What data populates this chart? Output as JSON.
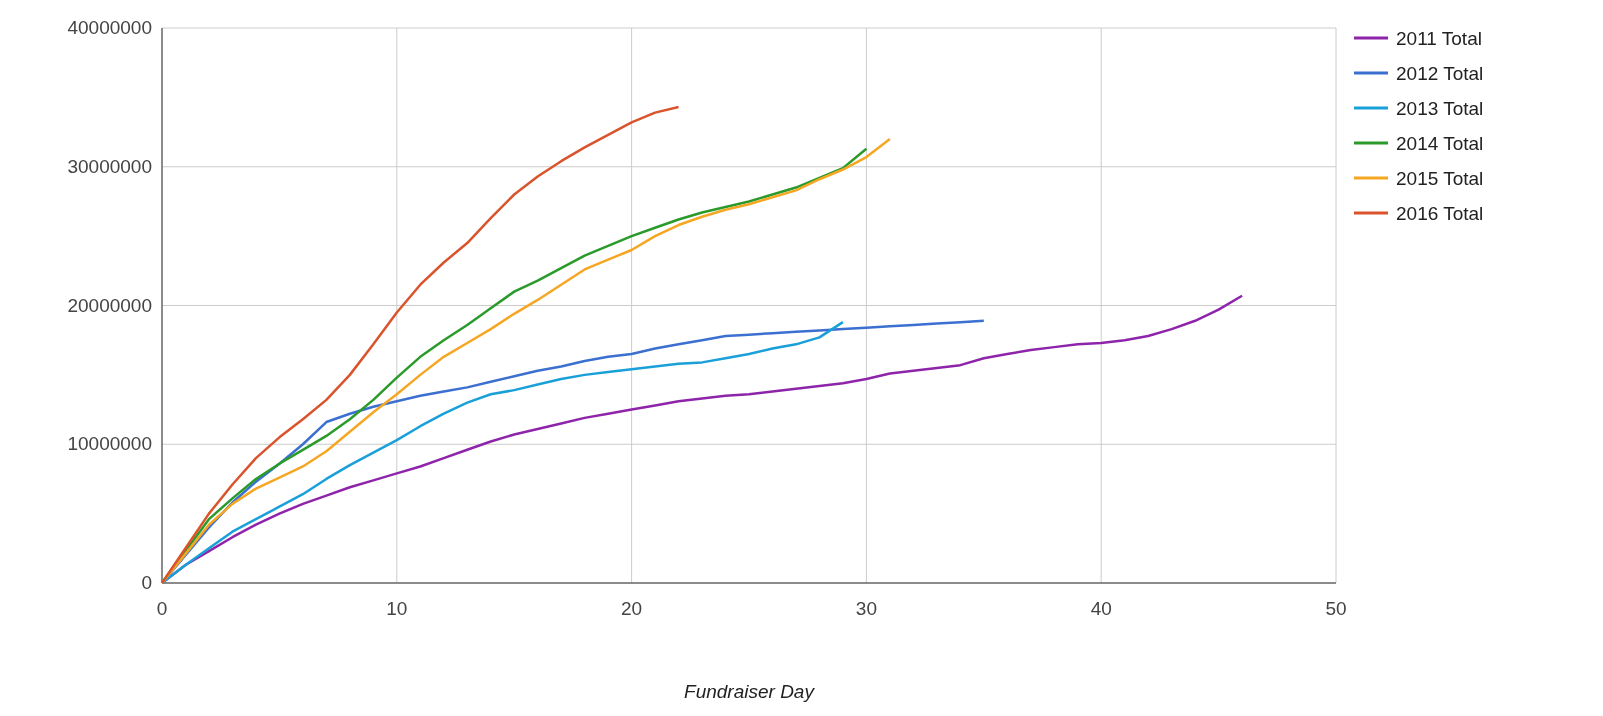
{
  "chart_data": {
    "type": "line",
    "xlabel": "Fundraiser Day",
    "xlim": [
      0,
      50
    ],
    "xticks": [
      0,
      10,
      20,
      30,
      40,
      50
    ],
    "ylim": [
      0,
      40000000
    ],
    "yticks": [
      0,
      10000000,
      20000000,
      30000000,
      40000000
    ],
    "grid": true,
    "legend": "top right",
    "marker": "none",
    "line_style": "solid",
    "series": [
      {
        "name": "2011 Total",
        "color": "#8e24aa",
        "x": [
          0,
          1,
          2,
          3,
          4,
          5,
          6,
          7,
          8,
          9,
          10,
          11,
          12,
          13,
          14,
          15,
          16,
          17,
          18,
          19,
          20,
          21,
          22,
          23,
          24,
          25,
          26,
          27,
          28,
          29,
          30,
          31,
          32,
          33,
          34,
          35,
          36,
          37,
          38,
          39,
          40,
          41,
          42,
          43,
          44,
          45,
          46
        ],
        "values": [
          0,
          1300000,
          2300000,
          3300000,
          4200000,
          5000000,
          5700000,
          6300000,
          6900000,
          7400000,
          7900000,
          8400000,
          9000000,
          9600000,
          10200000,
          10700000,
          11100000,
          11500000,
          11900000,
          12200000,
          12500000,
          12800000,
          13100000,
          13300000,
          13500000,
          13600000,
          13800000,
          14000000,
          14200000,
          14400000,
          14700000,
          15100000,
          15300000,
          15500000,
          15700000,
          16200000,
          16500000,
          16800000,
          17000000,
          17200000,
          17300000,
          17500000,
          17800000,
          18300000,
          18900000,
          19700000,
          20700000
        ]
      },
      {
        "name": "2012 Total",
        "color": "#3b6fd0",
        "x": [
          0,
          1,
          2,
          3,
          4,
          5,
          6,
          7,
          8,
          9,
          10,
          11,
          12,
          13,
          14,
          15,
          16,
          17,
          18,
          19,
          20,
          21,
          22,
          23,
          24,
          25,
          26,
          27,
          28,
          29,
          30,
          31,
          32,
          33,
          34,
          35
        ],
        "values": [
          0,
          2000000,
          4000000,
          5800000,
          7300000,
          8600000,
          10000000,
          11600000,
          12200000,
          12700000,
          13100000,
          13500000,
          13800000,
          14100000,
          14500000,
          14900000,
          15300000,
          15600000,
          16000000,
          16300000,
          16500000,
          16900000,
          17200000,
          17500000,
          17800000,
          17900000,
          18000000,
          18100000,
          18200000,
          18300000,
          18400000,
          18500000,
          18600000,
          18700000,
          18800000,
          18900000
        ]
      },
      {
        "name": "2013 Total",
        "color": "#1aa0d8",
        "x": [
          0,
          1,
          2,
          3,
          4,
          5,
          6,
          7,
          8,
          9,
          10,
          11,
          12,
          13,
          14,
          15,
          16,
          17,
          18,
          19,
          20,
          21,
          22,
          23,
          24,
          25,
          26,
          27,
          28,
          29
        ],
        "values": [
          0,
          1300000,
          2500000,
          3700000,
          4600000,
          5500000,
          6400000,
          7500000,
          8500000,
          9400000,
          10300000,
          11300000,
          12200000,
          13000000,
          13600000,
          13900000,
          14300000,
          14700000,
          15000000,
          15200000,
          15400000,
          15600000,
          15800000,
          15900000,
          16200000,
          16500000,
          16900000,
          17200000,
          17700000,
          18800000
        ]
      },
      {
        "name": "2014 Total",
        "color": "#2a9a2a",
        "x": [
          0,
          1,
          2,
          3,
          4,
          5,
          6,
          7,
          8,
          9,
          10,
          11,
          12,
          13,
          14,
          15,
          16,
          17,
          18,
          19,
          20,
          21,
          22,
          23,
          24,
          25,
          26,
          27,
          28,
          29,
          30
        ],
        "values": [
          0,
          2300000,
          4600000,
          6100000,
          7500000,
          8600000,
          9600000,
          10600000,
          11800000,
          13200000,
          14800000,
          16300000,
          17500000,
          18600000,
          19800000,
          21000000,
          21800000,
          22700000,
          23600000,
          24300000,
          25000000,
          25600000,
          26200000,
          26700000,
          27100000,
          27500000,
          28000000,
          28500000,
          29200000,
          29900000,
          31300000
        ]
      },
      {
        "name": "2015 Total",
        "color": "#f5a623",
        "x": [
          0,
          1,
          2,
          3,
          4,
          5,
          6,
          7,
          8,
          9,
          10,
          11,
          12,
          13,
          14,
          15,
          16,
          17,
          18,
          19,
          20,
          21,
          22,
          23,
          24,
          25,
          26,
          27,
          28,
          29,
          30,
          31
        ],
        "values": [
          0,
          2100000,
          4200000,
          5700000,
          6800000,
          7600000,
          8400000,
          9500000,
          10900000,
          12300000,
          13600000,
          15000000,
          16300000,
          17300000,
          18300000,
          19400000,
          20400000,
          21500000,
          22600000,
          23300000,
          24000000,
          25000000,
          25800000,
          26400000,
          26900000,
          27300000,
          27800000,
          28300000,
          29100000,
          29800000,
          30700000,
          32000000
        ]
      },
      {
        "name": "2016 Total",
        "color": "#d9542c",
        "x": [
          0,
          1,
          2,
          3,
          4,
          5,
          6,
          7,
          8,
          9,
          10,
          11,
          12,
          13,
          14,
          15,
          16,
          17,
          18,
          19,
          20,
          21,
          22
        ],
        "values": [
          0,
          2500000,
          5000000,
          7100000,
          9000000,
          10500000,
          11800000,
          13200000,
          15000000,
          17200000,
          19500000,
          21500000,
          23100000,
          24500000,
          26300000,
          28000000,
          29300000,
          30400000,
          31400000,
          32300000,
          33200000,
          33900000,
          34300000
        ]
      }
    ]
  }
}
